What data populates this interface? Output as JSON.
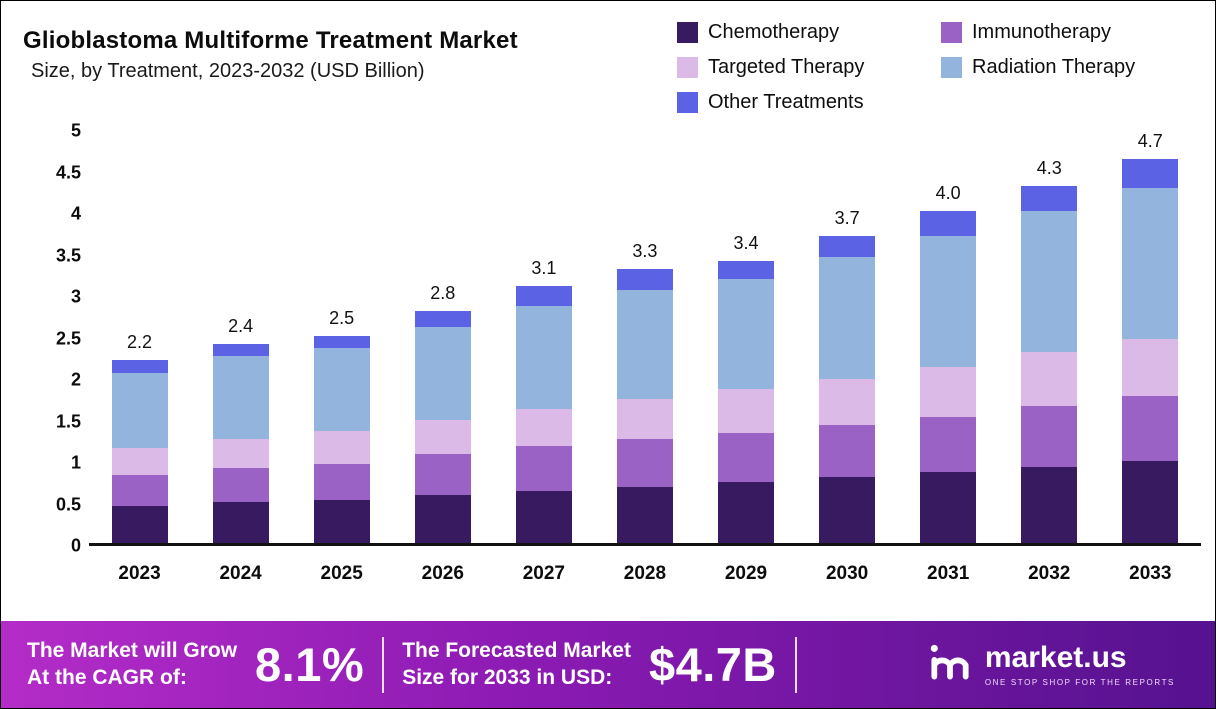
{
  "title": "Glioblastoma Multiforme Treatment Market",
  "subtitle": "Size, by Treatment, 2023-2032 (USD Billion)",
  "chart_data": {
    "type": "bar",
    "stacked": true,
    "title": "Glioblastoma Multiforme Treatment Market Size, by Treatment, 2023-2032 (USD Billion)",
    "xlabel": "",
    "ylabel": "USD Billion",
    "ylim": [
      0,
      5
    ],
    "yticks": [
      "5",
      "4.5",
      "4",
      "3.5",
      "3",
      "2.5",
      "2",
      "1.5",
      "1",
      "0.5",
      "0"
    ],
    "grid": false,
    "legend_position": "top-right",
    "categories": [
      "2023",
      "2024",
      "2025",
      "2026",
      "2027",
      "2028",
      "2029",
      "2030",
      "2031",
      "2032",
      "2033"
    ],
    "totals": [
      "2.2",
      "2.4",
      "2.5",
      "2.8",
      "3.1",
      "3.3",
      "3.4",
      "3.7",
      "4.0",
      "4.3",
      "4.7"
    ],
    "series": [
      {
        "name": "Chemotherapy",
        "color": "#371a60",
        "values": [
          0.45,
          0.49,
          0.52,
          0.58,
          0.63,
          0.68,
          0.73,
          0.79,
          0.85,
          0.92,
          1.0
        ]
      },
      {
        "name": "Immunotherapy",
        "color": "#9b62c6",
        "values": [
          0.37,
          0.41,
          0.43,
          0.49,
          0.54,
          0.57,
          0.59,
          0.63,
          0.67,
          0.73,
          0.8
        ]
      },
      {
        "name": "Targeted Therapy",
        "color": "#dcbae8",
        "values": [
          0.33,
          0.35,
          0.4,
          0.41,
          0.45,
          0.48,
          0.53,
          0.56,
          0.6,
          0.65,
          0.7
        ]
      },
      {
        "name": "Radiation Therapy",
        "color": "#92b4dd",
        "values": [
          0.9,
          1.0,
          1.0,
          1.12,
          1.23,
          1.32,
          1.33,
          1.47,
          1.58,
          1.7,
          1.85
        ]
      },
      {
        "name": "Other Treatments",
        "color": "#5b62e4",
        "values": [
          0.15,
          0.15,
          0.15,
          0.2,
          0.25,
          0.25,
          0.22,
          0.25,
          0.3,
          0.3,
          0.35
        ]
      }
    ]
  },
  "footer": {
    "cagr_label_line1": "The Market will Grow",
    "cagr_label_line2": "At the CAGR of:",
    "cagr_value": "8.1%",
    "forecast_label_line1": "The Forecasted Market",
    "forecast_label_line2": "Size for 2033 in USD:",
    "forecast_value": "$4.7B",
    "brand": "market.us",
    "brand_tagline": "ONE STOP SHOP FOR THE REPORTS",
    "gradient_left": "#b42cc8",
    "gradient_mid": "#8a1ab2",
    "gradient_right": "#55128f"
  }
}
